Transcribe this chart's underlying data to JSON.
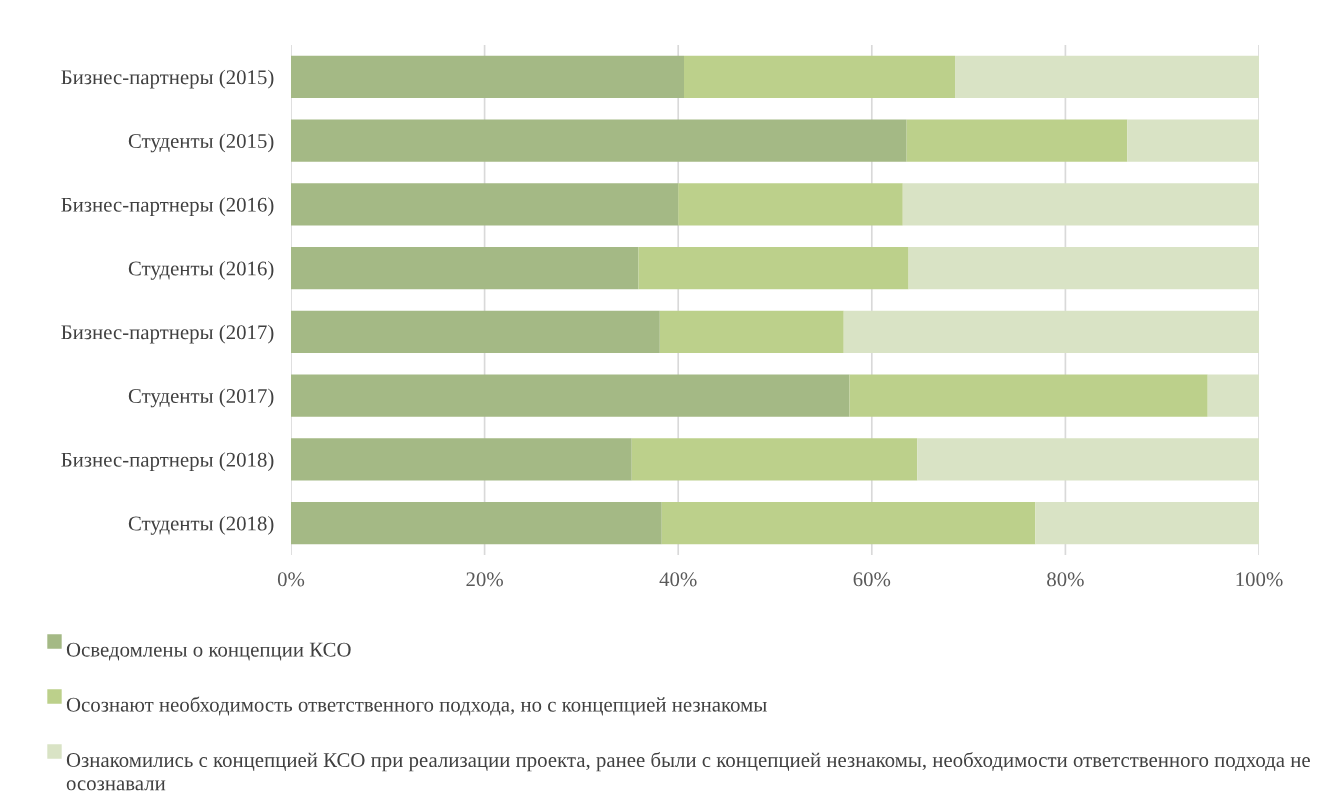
{
  "chart_data": {
    "type": "bar",
    "orientation": "horizontal",
    "stacked": true,
    "categories": [
      "Бизнес-партнеры (2015)",
      "Студенты (2015)",
      "Бизнес-партнеры (2016)",
      "Студенты (2016)",
      "Бизнес-партнеры (2017)",
      "Студенты (2017)",
      "Бизнес-партнеры (2018)",
      "Студенты (2018)"
    ],
    "series": [
      {
        "name": "Осведомлены о концепции КСО",
        "color": "#a4b985",
        "values": [
          40.6,
          63.6,
          40.0,
          35.9,
          38.1,
          57.7,
          35.2,
          38.3
        ]
      },
      {
        "name": "Осознают необходимость ответственного подхода, но с концепцией незнакомы",
        "color": "#bcd08b",
        "values": [
          28.0,
          22.8,
          23.2,
          27.9,
          19.0,
          37.0,
          29.5,
          38.6
        ]
      },
      {
        "name": "Ознакомились с концепцией КСО при реализации проекта, ранее были с концепцией незнакомы, необходимости ответственного подхода не осознавали",
        "color": "#d9e3c5",
        "values": [
          31.4,
          13.6,
          36.8,
          36.2,
          42.9,
          5.3,
          35.3,
          23.1
        ]
      }
    ],
    "xlim": [
      0,
      100
    ],
    "xticks": [
      {
        "value": 0,
        "label": "0%"
      },
      {
        "value": 20,
        "label": "20%"
      },
      {
        "value": 40,
        "label": "40%"
      },
      {
        "value": 60,
        "label": "60%"
      },
      {
        "value": 80,
        "label": "80%"
      },
      {
        "value": 100,
        "label": "100%"
      }
    ],
    "grid": "x",
    "legend": "bottom"
  }
}
